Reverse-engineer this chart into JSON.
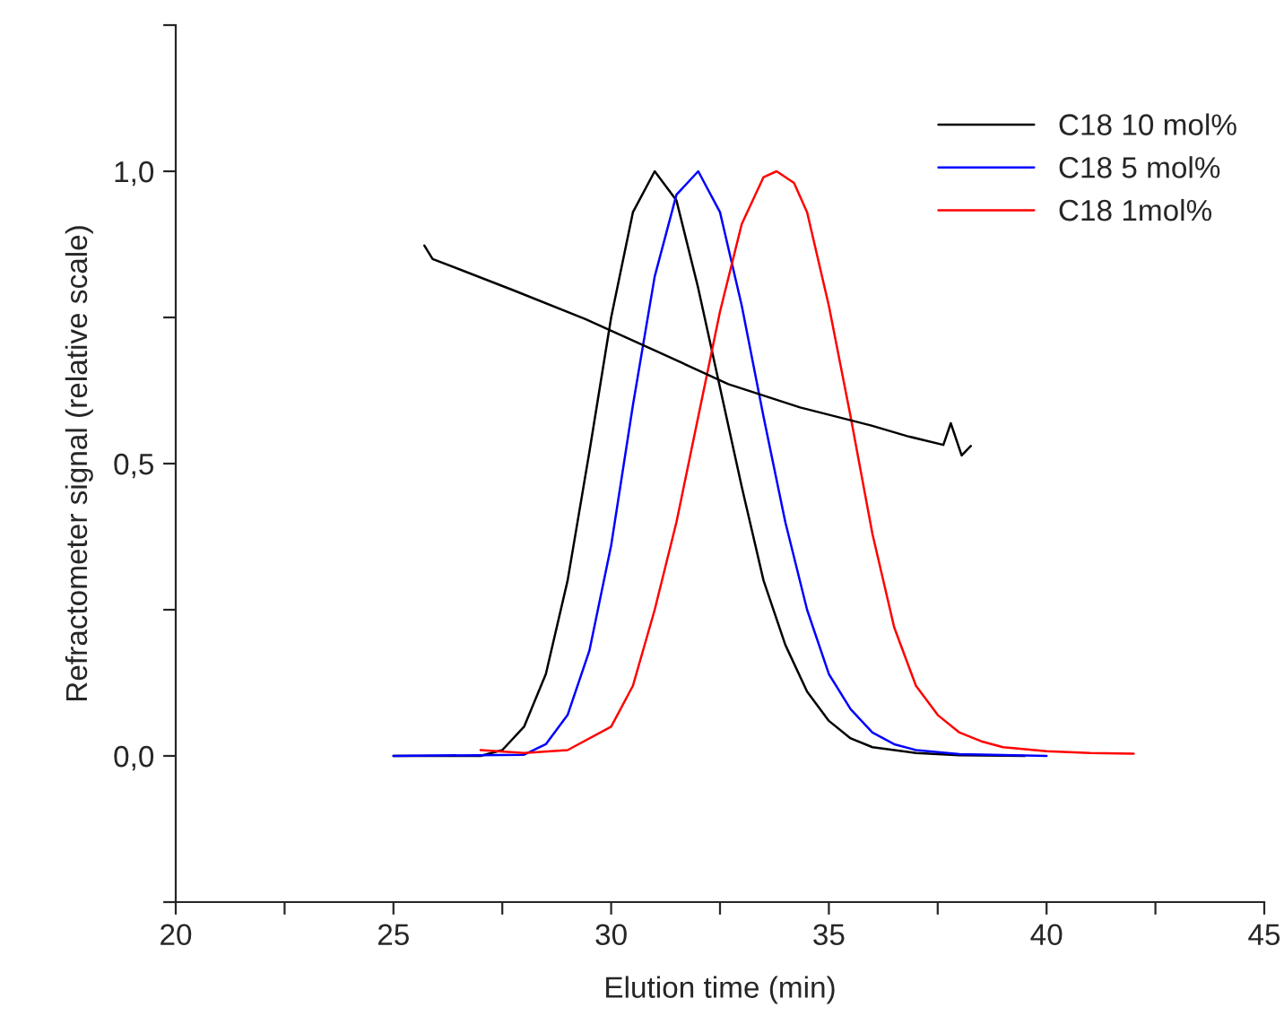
{
  "chart_data": {
    "type": "line",
    "xlabel": "Elution time (min)",
    "ylabel": "Refractometer signal (relative scale)",
    "xlim": [
      20,
      45
    ],
    "ylim": [
      -0.25,
      1.25
    ],
    "xticks": [
      20,
      {
        "value": 22.5,
        "label": null
      },
      25,
      {
        "value": 27.5,
        "label": null
      },
      30,
      {
        "value": 32.5,
        "label": null
      },
      35,
      {
        "value": 37.5,
        "label": null
      },
      40,
      {
        "value": 42.5,
        "label": null
      },
      45
    ],
    "yticks": [
      {
        "value": -0.25,
        "label": null
      },
      {
        "value": 0,
        "label": "0,0"
      },
      {
        "value": 0.25,
        "label": null
      },
      {
        "value": 0.5,
        "label": "0,5"
      },
      {
        "value": 0.75,
        "label": null
      },
      {
        "value": 1.0,
        "label": "1,0"
      },
      {
        "value": 1.25,
        "label": null
      }
    ],
    "grid": false,
    "legend": "top right",
    "marker": "none",
    "line_style": "solid",
    "series": [
      {
        "name": "C18 10 mol%",
        "color": "#000000",
        "x": [
          25,
          27,
          27.5,
          28,
          28.5,
          29,
          29.5,
          30,
          30.5,
          31,
          31.5,
          32,
          32.5,
          33,
          33.5,
          34,
          34.5,
          35,
          35.5,
          36,
          37,
          38,
          39.5
        ],
        "values": [
          0,
          0,
          0.01,
          0.05,
          0.14,
          0.3,
          0.52,
          0.75,
          0.93,
          1.0,
          0.95,
          0.8,
          0.63,
          0.46,
          0.3,
          0.19,
          0.11,
          0.06,
          0.03,
          0.015,
          0.005,
          0.001,
          0
        ]
      },
      {
        "name": "C18 5 mol%",
        "color": "#0000ff",
        "x": [
          25,
          28,
          28.5,
          29,
          29.5,
          30,
          30.5,
          31,
          31.5,
          32,
          32.5,
          33,
          33.5,
          34,
          34.5,
          35,
          35.5,
          36,
          36.5,
          37,
          38,
          40
        ],
        "values": [
          0,
          0.002,
          0.02,
          0.07,
          0.18,
          0.36,
          0.6,
          0.82,
          0.96,
          1.0,
          0.93,
          0.77,
          0.58,
          0.4,
          0.25,
          0.14,
          0.08,
          0.04,
          0.02,
          0.01,
          0.003,
          0
        ]
      },
      {
        "name": "C18 1mol%",
        "color": "#ff0000",
        "x": [
          27,
          28,
          29,
          30,
          30.5,
          31,
          31.5,
          32,
          32.5,
          33,
          33.5,
          33.8,
          34.2,
          34.5,
          35,
          35.5,
          36,
          36.5,
          37,
          37.5,
          38,
          38.5,
          39,
          40,
          41,
          42
        ],
        "values": [
          0.01,
          0.005,
          0.01,
          0.05,
          0.12,
          0.25,
          0.4,
          0.58,
          0.76,
          0.91,
          0.99,
          1.0,
          0.98,
          0.93,
          0.77,
          0.58,
          0.38,
          0.22,
          0.12,
          0.07,
          0.04,
          0.025,
          0.015,
          0.008,
          0.005,
          0.004
        ]
      },
      {
        "color": "#000000",
        "x": [
          25.71,
          25.9,
          27.77,
          29.41,
          31.05,
          32.69,
          34.34,
          35.98,
          36.8,
          37.63,
          37.8,
          38.05,
          38.26
        ],
        "values": [
          0.873,
          0.85,
          0.796,
          0.747,
          0.692,
          0.636,
          0.596,
          0.565,
          0.547,
          0.532,
          0.569,
          0.514,
          0.53
        ]
      }
    ]
  }
}
